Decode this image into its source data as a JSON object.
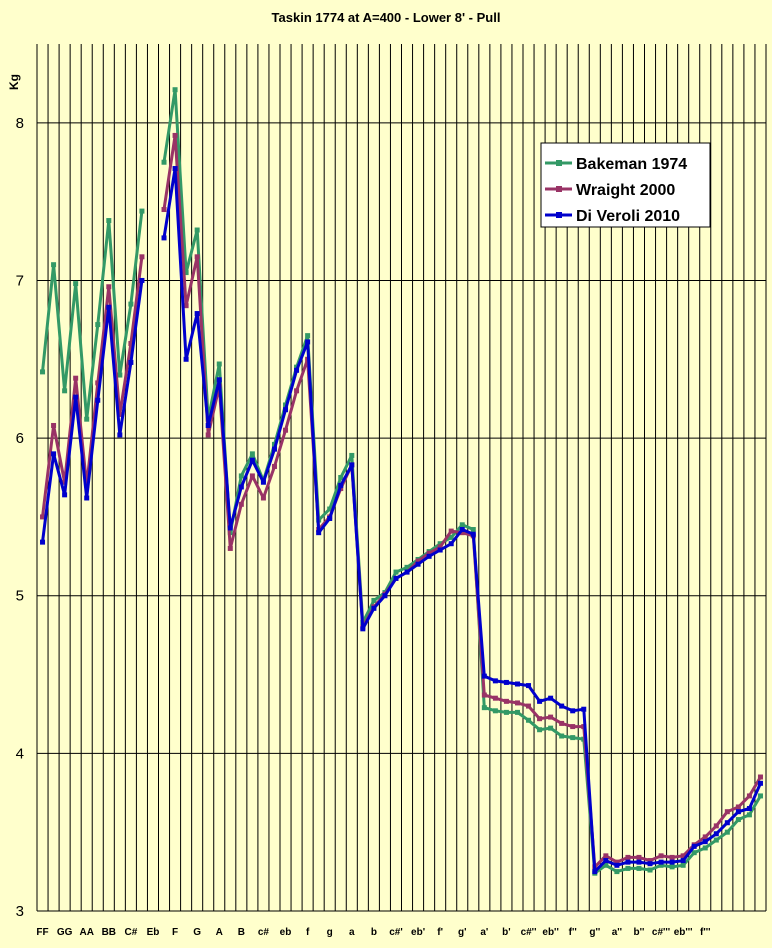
{
  "chart_data": {
    "type": "line",
    "title": "Taskin 1774 at A=400 - Lower 8' - Pull",
    "ylabel": "Kg",
    "xlabel": "",
    "ylim": [
      3,
      8.5
    ],
    "yticks": [
      3,
      4,
      5,
      6,
      7,
      8
    ],
    "grid": true,
    "legend_position": "top-right",
    "x_tick_labels": [
      "FF",
      "GG",
      "AA",
      "BB",
      "C#",
      "Eb",
      "F",
      "G",
      "A",
      "B",
      "c#",
      "eb",
      "f",
      "g",
      "a",
      "b",
      "c#'",
      "eb'",
      "f'",
      "g'",
      "a'",
      "b'",
      "c#''",
      "eb''",
      "f''",
      "g''",
      "a''",
      "b''",
      "c#'''",
      "eb'''",
      "f'''"
    ],
    "series": [
      {
        "name": "Bakeman 1974",
        "color": "#339966",
        "values": [
          6.42,
          7.1,
          6.3,
          6.98,
          6.12,
          6.72,
          7.38,
          6.4,
          6.85,
          7.44,
          null,
          7.75,
          8.21,
          7.05,
          7.32,
          6.12,
          6.47,
          5.4,
          5.76,
          5.9,
          5.73,
          5.96,
          6.21,
          6.45,
          6.65,
          5.48,
          5.55,
          5.75,
          5.89,
          4.83,
          4.97,
          5.02,
          5.15,
          5.18,
          5.23,
          5.28,
          5.33,
          5.37,
          5.45,
          5.42,
          4.29,
          4.27,
          4.26,
          4.26,
          4.21,
          4.15,
          4.16,
          4.11,
          4.1,
          4.09,
          3.24,
          3.29,
          3.25,
          3.27,
          3.27,
          3.26,
          3.29,
          3.28,
          3.29,
          3.37,
          3.4,
          3.45,
          3.5,
          3.58,
          3.61,
          3.73
        ]
      },
      {
        "name": "Wraight 2000",
        "color": "#993366",
        "values": [
          5.5,
          6.08,
          5.72,
          6.38,
          5.7,
          6.35,
          6.96,
          6.15,
          6.6,
          7.15,
          null,
          7.45,
          7.92,
          6.84,
          7.15,
          6.02,
          6.33,
          5.3,
          5.58,
          5.76,
          5.62,
          5.82,
          6.05,
          6.3,
          6.5,
          5.42,
          5.5,
          5.68,
          5.83,
          4.8,
          4.93,
          5.01,
          5.11,
          5.15,
          5.22,
          5.27,
          5.31,
          5.41,
          5.4,
          5.38,
          4.37,
          4.35,
          4.33,
          4.32,
          4.3,
          4.22,
          4.23,
          4.19,
          4.17,
          4.17,
          3.28,
          3.35,
          3.31,
          3.34,
          3.34,
          3.32,
          3.35,
          3.34,
          3.35,
          3.42,
          3.47,
          3.54,
          3.63,
          3.66,
          3.73,
          3.85
        ]
      },
      {
        "name": "Di Veroli 2010",
        "color": "#0000CC",
        "values": [
          5.34,
          5.9,
          5.64,
          6.26,
          5.62,
          6.24,
          6.83,
          6.02,
          6.48,
          7.0,
          null,
          7.27,
          7.71,
          6.5,
          6.79,
          6.08,
          6.37,
          5.43,
          5.69,
          5.86,
          5.72,
          5.93,
          6.18,
          6.43,
          6.61,
          5.4,
          5.49,
          5.7,
          5.83,
          4.79,
          4.92,
          5.0,
          5.11,
          5.15,
          5.2,
          5.25,
          5.29,
          5.33,
          5.42,
          5.39,
          4.49,
          4.46,
          4.45,
          4.44,
          4.43,
          4.33,
          4.35,
          4.3,
          4.27,
          4.28,
          3.25,
          3.32,
          3.29,
          3.31,
          3.31,
          3.3,
          3.31,
          3.31,
          3.32,
          3.41,
          3.44,
          3.49,
          3.56,
          3.63,
          3.65,
          3.81
        ]
      }
    ]
  }
}
